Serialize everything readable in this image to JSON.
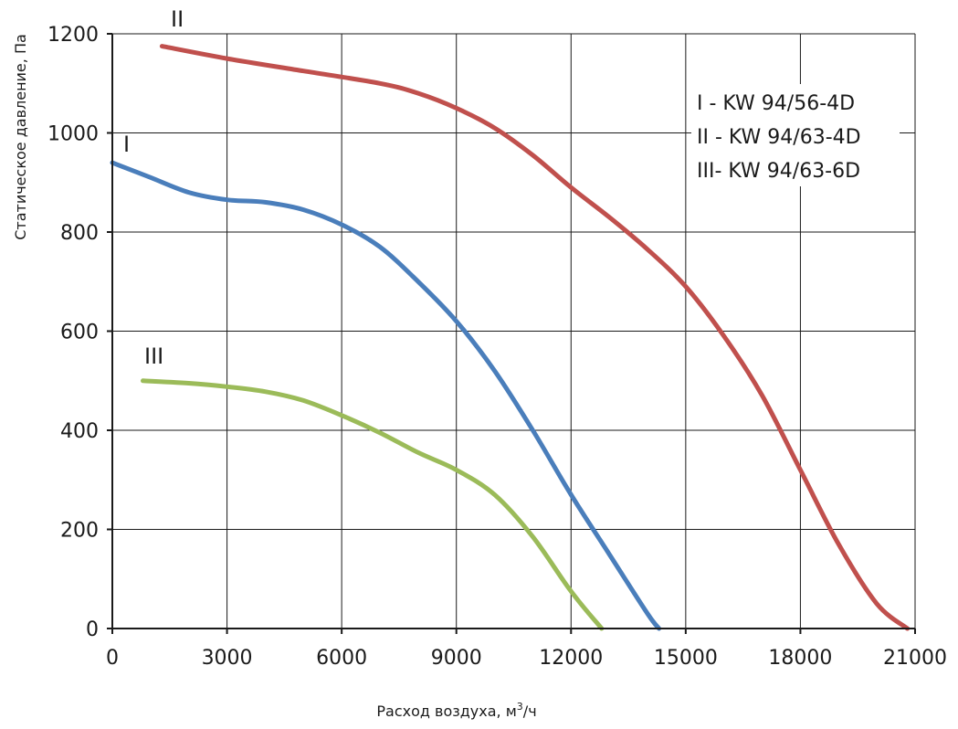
{
  "chart_data": {
    "type": "line",
    "title": "",
    "xlabel": "Расход воздуха, м",
    "xlabel_sup": "3",
    "xlabel_suffix": "/ч",
    "ylabel": "Статическое давление, Па",
    "xlim": [
      0,
      21000
    ],
    "ylim": [
      0,
      1200
    ],
    "x_ticks": [
      "0",
      "3000",
      "6000",
      "9000",
      "12000",
      "15000",
      "18000",
      "21000"
    ],
    "y_ticks": [
      "0",
      "200",
      "400",
      "600",
      "800",
      "1000",
      "1200"
    ],
    "grid": true,
    "legend_position": "top-right",
    "legend": [
      "I  - KW 94/56-4D",
      "II - KW 94/63-4D",
      "III- KW 94/63-6D"
    ],
    "series": [
      {
        "name": "I",
        "color": "#4a7ebb",
        "x": [
          0,
          1000,
          2000,
          3000,
          4000,
          5000,
          6000,
          7000,
          8000,
          9000,
          10000,
          11000,
          12000,
          13000,
          14000,
          14300
        ],
        "y": [
          940,
          910,
          880,
          865,
          860,
          845,
          815,
          770,
          700,
          620,
          520,
          400,
          270,
          150,
          30,
          0
        ]
      },
      {
        "name": "II",
        "color": "#c0504d",
        "x": [
          1300,
          3000,
          5000,
          7000,
          8000,
          9000,
          10000,
          11000,
          12000,
          13000,
          14000,
          15000,
          16000,
          17000,
          18000,
          19000,
          20000,
          20800
        ],
        "y": [
          1175,
          1150,
          1125,
          1100,
          1080,
          1050,
          1010,
          955,
          890,
          830,
          765,
          690,
          590,
          470,
          320,
          170,
          50,
          0
        ]
      },
      {
        "name": "III",
        "color": "#9bbb59",
        "x": [
          800,
          2000,
          3000,
          4000,
          5000,
          6000,
          7000,
          8000,
          9000,
          10000,
          11000,
          12000,
          12800
        ],
        "y": [
          500,
          495,
          488,
          478,
          460,
          430,
          395,
          355,
          320,
          270,
          185,
          75,
          0
        ]
      }
    ]
  }
}
